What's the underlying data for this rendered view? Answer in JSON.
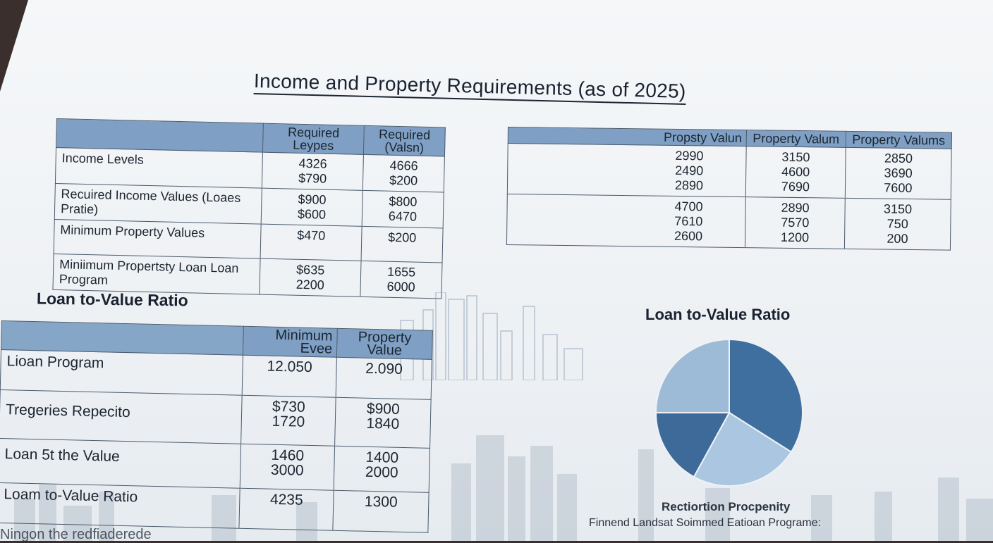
{
  "title": "Income and Property Requirements (as of 2025)",
  "table_income": {
    "headers": [
      "",
      "Required Leypes",
      "Required (Valsn)"
    ],
    "rows": [
      {
        "label": "Income Levels",
        "c1": [
          "4326",
          "$790"
        ],
        "c2": [
          "4666",
          "$200"
        ]
      },
      {
        "label": "Recuired Income Values (Loaes Pratie)",
        "c1": [
          "$900",
          "$600"
        ],
        "c2": [
          "$800",
          "6470"
        ]
      },
      {
        "label": "Minimum Property Values",
        "c1": [
          "$470"
        ],
        "c2": [
          "$200"
        ]
      },
      {
        "label": "Miniimum Propertsty Loan Loan Program",
        "c1": [
          "$635",
          "2200"
        ],
        "c2": [
          "1655",
          "6000"
        ]
      }
    ]
  },
  "table_property": {
    "headers": [
      "Propsty Valun",
      "Property Valum",
      "Property Valums"
    ],
    "rows": [
      [
        "2990",
        "3150",
        "2850"
      ],
      [
        "2490",
        "4600",
        "3690"
      ],
      [
        "2890",
        "7690",
        "7600"
      ],
      [
        "4700",
        "2890",
        "3150"
      ],
      [
        "7610",
        "7570",
        "750"
      ],
      [
        "2600",
        "1200",
        "200"
      ]
    ]
  },
  "ltv_left_label": "Loan to-Value Ratio",
  "table_ltv": {
    "headers": [
      "",
      "Minimum Evee",
      "Property Value"
    ],
    "rows": [
      {
        "label": "Lioan Program",
        "c1": [
          "12.050"
        ],
        "c2": [
          "2.090"
        ]
      },
      {
        "label": "Tregeries Repecito",
        "c1": [
          "$730",
          "1720"
        ],
        "c2": [
          "$900",
          "1840"
        ]
      },
      {
        "label": "Loan 5t the Value",
        "c1": [
          "1460",
          "3000"
        ],
        "c2": [
          "1400",
          "2000"
        ]
      },
      {
        "label": "Loam to-Value Ratio",
        "c1": [
          "4235"
        ],
        "c2": [
          "1300"
        ]
      }
    ]
  },
  "ltv_right_label": "Loan to-Value Ratio",
  "chart_data": {
    "type": "pie",
    "title": "Loan to-Value Ratio",
    "values": [
      34,
      24,
      17,
      25
    ],
    "colors": [
      "#3f6f9e",
      "#aac6e0",
      "#3d6a98",
      "#9dbbd7"
    ]
  },
  "pie_caption_1": "Rectiortion Procpenity",
  "pie_caption_2": "Finnend Landsat Soimmed Eatioan Programe:",
  "bottom_text": "Ningon the redfiaderede"
}
